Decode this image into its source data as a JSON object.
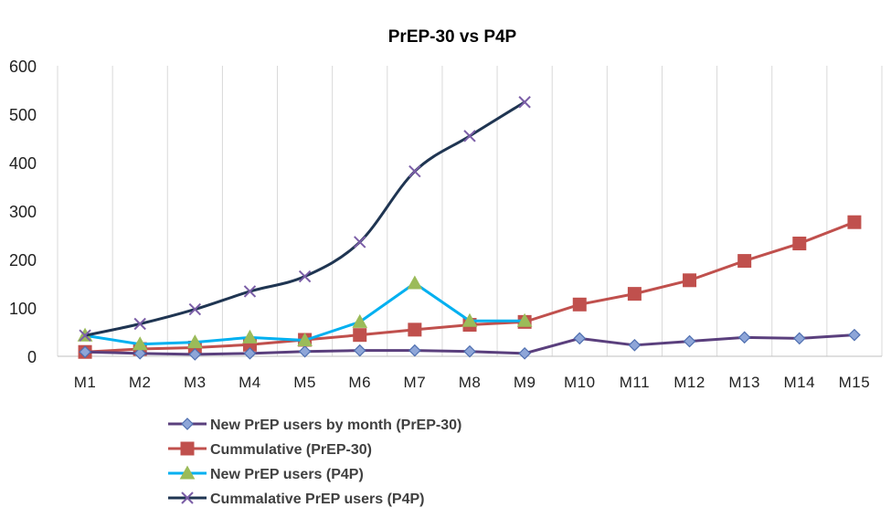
{
  "chart_data": {
    "type": "line",
    "title": "PrEP-30 vs P4P",
    "xlabel": "",
    "ylabel": "",
    "ylim": [
      0,
      600
    ],
    "yticks": [
      0,
      100,
      200,
      300,
      400,
      500,
      600
    ],
    "grid": "vertical",
    "legend_position": "bottom-left",
    "categories": [
      "M1",
      "M2",
      "M3",
      "M4",
      "M5",
      "M6",
      "M7",
      "M8",
      "M9",
      "M10",
      "M11",
      "M12",
      "M13",
      "M14",
      "M15"
    ],
    "series": [
      {
        "name": "New PrEP users by month (PrEP-30)",
        "color": "#5a3f7d",
        "marker": "diamond",
        "marker_fill": "#8ea6d8",
        "marker_stroke": "#4f6fb0",
        "values": [
          9,
          6,
          4,
          6,
          10,
          12,
          12,
          10,
          6,
          37,
          23,
          31,
          39,
          37,
          44
        ]
      },
      {
        "name": "Cummulative (PrEP-30)",
        "color": "#c0504d",
        "marker": "square",
        "marker_fill": "#c0504d",
        "marker_stroke": "#c0504d",
        "values": [
          9,
          15,
          18,
          24,
          34,
          44,
          55,
          65,
          71,
          107,
          129,
          157,
          197,
          233,
          277
        ]
      },
      {
        "name": "New PrEP users (P4P)",
        "color": "#00b0f0",
        "marker": "triangle",
        "marker_fill": "#9bbb59",
        "marker_stroke": "#9bbb59",
        "values": [
          43,
          25,
          29,
          39,
          33,
          71,
          151,
          73,
          73,
          null,
          null,
          null,
          null,
          null,
          null
        ]
      },
      {
        "name": "Cummalative PrEP users (P4P)",
        "color": "#1f3552",
        "marker": "x",
        "marker_fill": "none",
        "marker_stroke": "#7b5ea7",
        "values": [
          43,
          67,
          97,
          134,
          165,
          236,
          382,
          455,
          525,
          null,
          null,
          null,
          null,
          null,
          null
        ]
      }
    ]
  }
}
